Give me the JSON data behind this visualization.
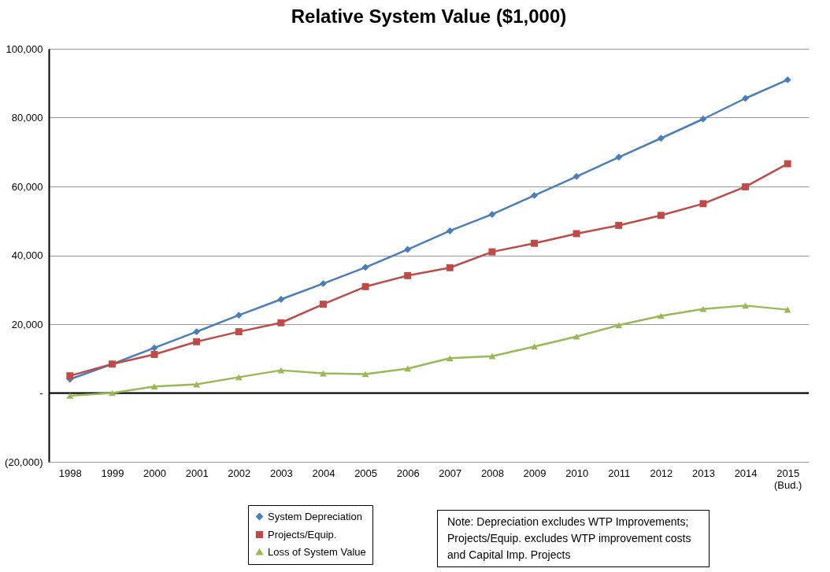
{
  "chart_data": {
    "type": "line",
    "title": "Relative System Value ($1,000)",
    "categories": [
      "1998",
      "1999",
      "2000",
      "2001",
      "2002",
      "2003",
      "2004",
      "2005",
      "2006",
      "2007",
      "2008",
      "2009",
      "2010",
      "2011",
      "2012",
      "2013",
      "2014",
      "2015 (Bud.)"
    ],
    "series": [
      {
        "name": "System Depreciation",
        "color": "#4a7ebb",
        "marker": "diamond",
        "values": [
          4000,
          8400,
          13100,
          17800,
          22600,
          27200,
          31800,
          36500,
          41700,
          47100,
          51900,
          57400,
          62900,
          68500,
          74000,
          79600,
          85600,
          91000
        ]
      },
      {
        "name": "Projects/Equip.",
        "color": "#be4b48",
        "marker": "square",
        "values": [
          5000,
          8400,
          11200,
          14900,
          17800,
          20400,
          25800,
          30900,
          34100,
          36400,
          41000,
          43500,
          46300,
          48700,
          51600,
          55000,
          59900,
          66600
        ]
      },
      {
        "name": "Loss of System Value",
        "color": "#98b954",
        "marker": "triangle",
        "values": [
          -800,
          0,
          1900,
          2500,
          4600,
          6600,
          5700,
          5500,
          7100,
          10100,
          10700,
          13500,
          16400,
          19700,
          22400,
          24400,
          25400,
          24200
        ]
      }
    ],
    "ylim": [
      -20000,
      100000
    ],
    "yticks": [
      {
        "value": -20000,
        "label": "(20,000)"
      },
      {
        "value": 0,
        "label": "-"
      },
      {
        "value": 20000,
        "label": "20,000"
      },
      {
        "value": 40000,
        "label": "40,000"
      },
      {
        "value": 60000,
        "label": "60,000"
      },
      {
        "value": 80000,
        "label": "80,000"
      },
      {
        "value": 100000,
        "label": "100,000"
      }
    ],
    "grid": "y",
    "legend": "bottom left",
    "line_style": "solid",
    "ref_lines": [
      {
        "axis": "y",
        "value": 0,
        "color": "#000000"
      }
    ],
    "annotations": [
      "Note:  Depreciation excludes WTP Improvements; Projects/Equip. excludes WTP improvement costs and Capital Imp. Projects"
    ]
  }
}
